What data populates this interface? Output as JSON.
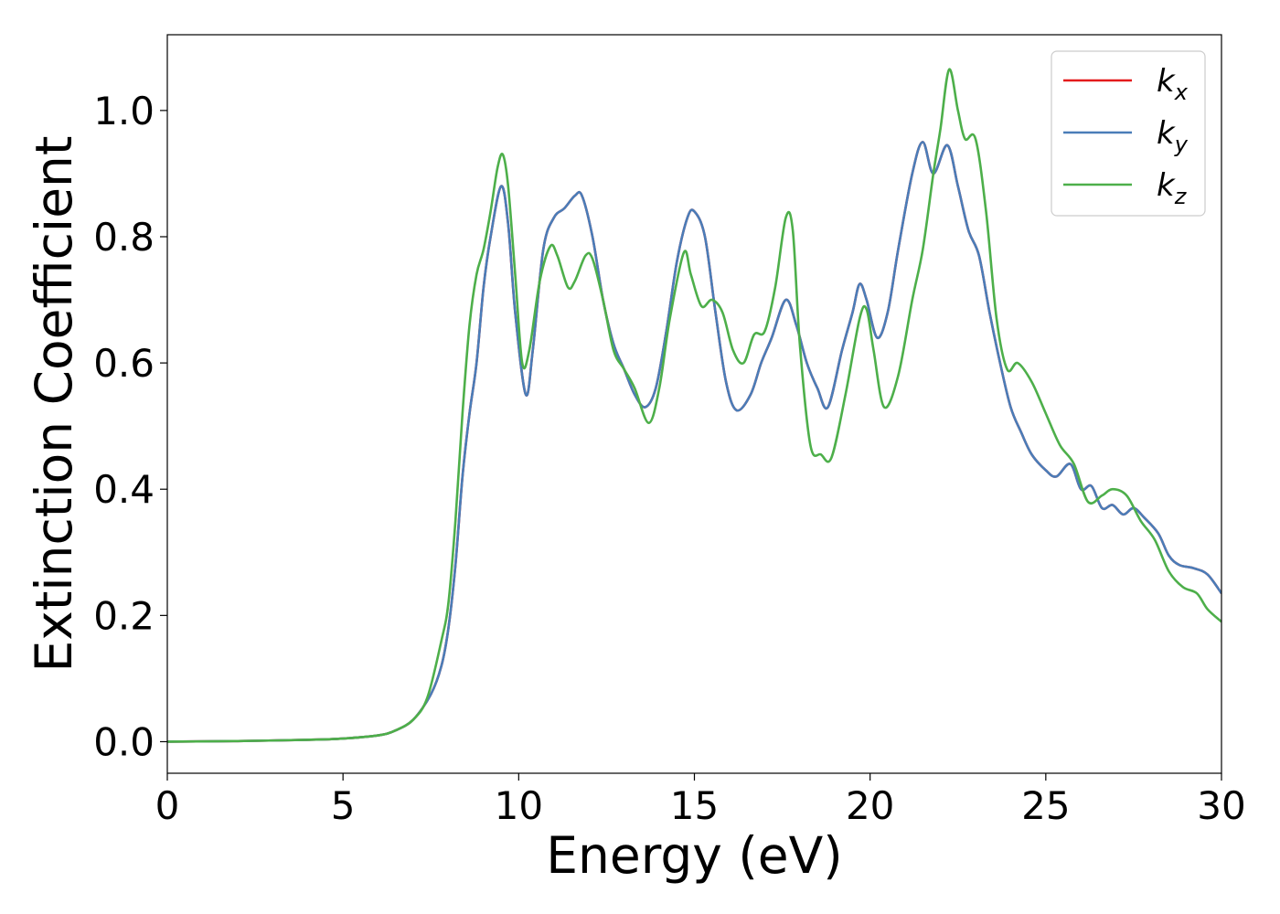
{
  "chart_data": {
    "type": "line",
    "title": "",
    "xlabel": "Energy (eV)",
    "ylabel": "Extinction Coefficient",
    "xlim": [
      0,
      30
    ],
    "ylim": [
      -0.05,
      1.12
    ],
    "xticks": [
      0,
      5,
      10,
      15,
      20,
      25,
      30
    ],
    "xtick_labels": [
      "0",
      "5",
      "10",
      "15",
      "20",
      "25",
      "30"
    ],
    "yticks": [
      0.0,
      0.2,
      0.4,
      0.6,
      0.8,
      1.0
    ],
    "ytick_labels": [
      "0.0",
      "0.2",
      "0.4",
      "0.6",
      "0.8",
      "1.0"
    ],
    "grid": false,
    "legend_position": "top-right",
    "series": [
      {
        "name": "kx",
        "base": "k",
        "sub": "x",
        "color": "#e41a1c",
        "points": [
          [
            0,
            0
          ],
          [
            2,
            0.001
          ],
          [
            4,
            0.003
          ],
          [
            5,
            0.005
          ],
          [
            6,
            0.01
          ],
          [
            6.5,
            0.018
          ],
          [
            7,
            0.035
          ],
          [
            7.5,
            0.075
          ],
          [
            7.8,
            0.12
          ],
          [
            8,
            0.18
          ],
          [
            8.2,
            0.28
          ],
          [
            8.4,
            0.42
          ],
          [
            8.6,
            0.52
          ],
          [
            8.8,
            0.6
          ],
          [
            9,
            0.72
          ],
          [
            9.2,
            0.8
          ],
          [
            9.5,
            0.88
          ],
          [
            9.7,
            0.82
          ],
          [
            9.9,
            0.68
          ],
          [
            10.2,
            0.55
          ],
          [
            10.4,
            0.62
          ],
          [
            10.7,
            0.78
          ],
          [
            11,
            0.83
          ],
          [
            11.3,
            0.845
          ],
          [
            11.6,
            0.865
          ],
          [
            11.8,
            0.865
          ],
          [
            12.1,
            0.8
          ],
          [
            12.4,
            0.7
          ],
          [
            12.7,
            0.63
          ],
          [
            13,
            0.59
          ],
          [
            13.3,
            0.55
          ],
          [
            13.6,
            0.53
          ],
          [
            13.9,
            0.56
          ],
          [
            14.2,
            0.65
          ],
          [
            14.5,
            0.76
          ],
          [
            14.8,
            0.83
          ],
          [
            15,
            0.84
          ],
          [
            15.3,
            0.8
          ],
          [
            15.6,
            0.68
          ],
          [
            15.9,
            0.57
          ],
          [
            16.2,
            0.525
          ],
          [
            16.6,
            0.55
          ],
          [
            16.9,
            0.6
          ],
          [
            17.2,
            0.64
          ],
          [
            17.6,
            0.7
          ],
          [
            17.9,
            0.66
          ],
          [
            18.2,
            0.6
          ],
          [
            18.5,
            0.56
          ],
          [
            18.8,
            0.53
          ],
          [
            19.2,
            0.62
          ],
          [
            19.5,
            0.68
          ],
          [
            19.7,
            0.725
          ],
          [
            19.9,
            0.7
          ],
          [
            20.2,
            0.64
          ],
          [
            20.5,
            0.68
          ],
          [
            20.8,
            0.78
          ],
          [
            21.2,
            0.9
          ],
          [
            21.5,
            0.95
          ],
          [
            21.8,
            0.9
          ],
          [
            22.2,
            0.945
          ],
          [
            22.5,
            0.88
          ],
          [
            22.8,
            0.81
          ],
          [
            23.1,
            0.77
          ],
          [
            23.4,
            0.68
          ],
          [
            23.7,
            0.6
          ],
          [
            24,
            0.53
          ],
          [
            24.3,
            0.49
          ],
          [
            24.6,
            0.455
          ],
          [
            25,
            0.43
          ],
          [
            25.3,
            0.42
          ],
          [
            25.7,
            0.44
          ],
          [
            26,
            0.4
          ],
          [
            26.3,
            0.405
          ],
          [
            26.6,
            0.37
          ],
          [
            26.9,
            0.375
          ],
          [
            27.2,
            0.36
          ],
          [
            27.5,
            0.37
          ],
          [
            27.8,
            0.355
          ],
          [
            28.2,
            0.33
          ],
          [
            28.5,
            0.295
          ],
          [
            28.8,
            0.28
          ],
          [
            29.2,
            0.275
          ],
          [
            29.6,
            0.265
          ],
          [
            30,
            0.235
          ]
        ]
      },
      {
        "name": "ky",
        "base": "k",
        "sub": "y",
        "color": "#4a7db8",
        "points": [
          [
            0,
            0
          ],
          [
            2,
            0.001
          ],
          [
            4,
            0.003
          ],
          [
            5,
            0.005
          ],
          [
            6,
            0.01
          ],
          [
            6.5,
            0.018
          ],
          [
            7,
            0.035
          ],
          [
            7.5,
            0.075
          ],
          [
            7.8,
            0.12
          ],
          [
            8,
            0.18
          ],
          [
            8.2,
            0.28
          ],
          [
            8.4,
            0.42
          ],
          [
            8.6,
            0.52
          ],
          [
            8.8,
            0.6
          ],
          [
            9,
            0.72
          ],
          [
            9.2,
            0.8
          ],
          [
            9.5,
            0.88
          ],
          [
            9.7,
            0.82
          ],
          [
            9.9,
            0.68
          ],
          [
            10.2,
            0.55
          ],
          [
            10.4,
            0.62
          ],
          [
            10.7,
            0.78
          ],
          [
            11,
            0.83
          ],
          [
            11.3,
            0.845
          ],
          [
            11.6,
            0.865
          ],
          [
            11.8,
            0.865
          ],
          [
            12.1,
            0.8
          ],
          [
            12.4,
            0.7
          ],
          [
            12.7,
            0.63
          ],
          [
            13,
            0.59
          ],
          [
            13.3,
            0.55
          ],
          [
            13.6,
            0.53
          ],
          [
            13.9,
            0.56
          ],
          [
            14.2,
            0.65
          ],
          [
            14.5,
            0.76
          ],
          [
            14.8,
            0.83
          ],
          [
            15,
            0.84
          ],
          [
            15.3,
            0.8
          ],
          [
            15.6,
            0.68
          ],
          [
            15.9,
            0.57
          ],
          [
            16.2,
            0.525
          ],
          [
            16.6,
            0.55
          ],
          [
            16.9,
            0.6
          ],
          [
            17.2,
            0.64
          ],
          [
            17.6,
            0.7
          ],
          [
            17.9,
            0.66
          ],
          [
            18.2,
            0.6
          ],
          [
            18.5,
            0.56
          ],
          [
            18.8,
            0.53
          ],
          [
            19.2,
            0.62
          ],
          [
            19.5,
            0.68
          ],
          [
            19.7,
            0.725
          ],
          [
            19.9,
            0.7
          ],
          [
            20.2,
            0.64
          ],
          [
            20.5,
            0.68
          ],
          [
            20.8,
            0.78
          ],
          [
            21.2,
            0.9
          ],
          [
            21.5,
            0.95
          ],
          [
            21.8,
            0.9
          ],
          [
            22.2,
            0.945
          ],
          [
            22.5,
            0.88
          ],
          [
            22.8,
            0.81
          ],
          [
            23.1,
            0.77
          ],
          [
            23.4,
            0.68
          ],
          [
            23.7,
            0.6
          ],
          [
            24,
            0.53
          ],
          [
            24.3,
            0.49
          ],
          [
            24.6,
            0.455
          ],
          [
            25,
            0.43
          ],
          [
            25.3,
            0.42
          ],
          [
            25.7,
            0.44
          ],
          [
            26,
            0.4
          ],
          [
            26.3,
            0.405
          ],
          [
            26.6,
            0.37
          ],
          [
            26.9,
            0.375
          ],
          [
            27.2,
            0.36
          ],
          [
            27.5,
            0.37
          ],
          [
            27.8,
            0.355
          ],
          [
            28.2,
            0.33
          ],
          [
            28.5,
            0.295
          ],
          [
            28.8,
            0.28
          ],
          [
            29.2,
            0.275
          ],
          [
            29.6,
            0.265
          ],
          [
            30,
            0.235
          ]
        ]
      },
      {
        "name": "kz",
        "base": "k",
        "sub": "z",
        "color": "#4daf4a",
        "points": [
          [
            0,
            0
          ],
          [
            2,
            0.001
          ],
          [
            4,
            0.003
          ],
          [
            5,
            0.005
          ],
          [
            6,
            0.01
          ],
          [
            6.5,
            0.018
          ],
          [
            7,
            0.035
          ],
          [
            7.4,
            0.07
          ],
          [
            7.8,
            0.16
          ],
          [
            8,
            0.22
          ],
          [
            8.2,
            0.35
          ],
          [
            8.4,
            0.52
          ],
          [
            8.6,
            0.66
          ],
          [
            8.8,
            0.74
          ],
          [
            9,
            0.78
          ],
          [
            9.2,
            0.84
          ],
          [
            9.4,
            0.91
          ],
          [
            9.55,
            0.93
          ],
          [
            9.7,
            0.88
          ],
          [
            9.9,
            0.74
          ],
          [
            10.1,
            0.6
          ],
          [
            10.3,
            0.62
          ],
          [
            10.6,
            0.73
          ],
          [
            10.9,
            0.785
          ],
          [
            11.1,
            0.77
          ],
          [
            11.4,
            0.72
          ],
          [
            11.6,
            0.73
          ],
          [
            11.9,
            0.77
          ],
          [
            12.1,
            0.765
          ],
          [
            12.4,
            0.7
          ],
          [
            12.7,
            0.62
          ],
          [
            13,
            0.59
          ],
          [
            13.3,
            0.56
          ],
          [
            13.7,
            0.505
          ],
          [
            14,
            0.56
          ],
          [
            14.3,
            0.67
          ],
          [
            14.7,
            0.775
          ],
          [
            14.9,
            0.74
          ],
          [
            15.2,
            0.69
          ],
          [
            15.5,
            0.7
          ],
          [
            15.8,
            0.68
          ],
          [
            16.1,
            0.62
          ],
          [
            16.4,
            0.6
          ],
          [
            16.7,
            0.645
          ],
          [
            17,
            0.65
          ],
          [
            17.3,
            0.72
          ],
          [
            17.6,
            0.83
          ],
          [
            17.8,
            0.81
          ],
          [
            18,
            0.63
          ],
          [
            18.3,
            0.47
          ],
          [
            18.6,
            0.455
          ],
          [
            18.9,
            0.45
          ],
          [
            19.3,
            0.55
          ],
          [
            19.7,
            0.67
          ],
          [
            19.9,
            0.685
          ],
          [
            20.1,
            0.62
          ],
          [
            20.4,
            0.53
          ],
          [
            20.8,
            0.58
          ],
          [
            21.2,
            0.7
          ],
          [
            21.5,
            0.78
          ],
          [
            21.8,
            0.9
          ],
          [
            22,
            0.97
          ],
          [
            22.25,
            1.065
          ],
          [
            22.5,
            1.0
          ],
          [
            22.7,
            0.955
          ],
          [
            23,
            0.955
          ],
          [
            23.3,
            0.84
          ],
          [
            23.6,
            0.67
          ],
          [
            23.9,
            0.59
          ],
          [
            24.2,
            0.6
          ],
          [
            24.6,
            0.57
          ],
          [
            25,
            0.52
          ],
          [
            25.4,
            0.47
          ],
          [
            25.8,
            0.44
          ],
          [
            26.2,
            0.38
          ],
          [
            26.6,
            0.39
          ],
          [
            26.9,
            0.4
          ],
          [
            27.3,
            0.39
          ],
          [
            27.7,
            0.35
          ],
          [
            28.1,
            0.32
          ],
          [
            28.5,
            0.27
          ],
          [
            28.9,
            0.245
          ],
          [
            29.3,
            0.235
          ],
          [
            29.6,
            0.21
          ],
          [
            30,
            0.19
          ]
        ]
      }
    ]
  }
}
